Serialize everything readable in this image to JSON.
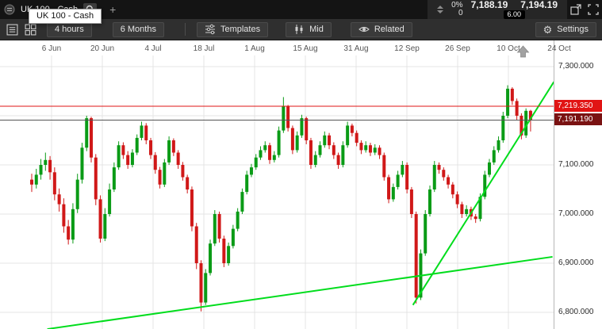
{
  "top_bar": {
    "instrument_label": "UK 100 - Cash",
    "add_tab_label": "+",
    "change_percent": "0%",
    "change_points": "0",
    "sell_price": "7,188.19",
    "buy_price": "7,194.19",
    "spread": "6.00"
  },
  "tooltip_text": "UK 100 - Cash",
  "toolbar": {
    "timeframe_label": "4 hours",
    "period_label": "6 Months",
    "templates_label": "Templates",
    "price_basis_label": "Mid",
    "related_label": "Related",
    "settings_label": "Settings"
  },
  "icons": {
    "gear": "⚙"
  },
  "theme": {
    "topbar_bg": "#141414",
    "toolbar_bg": "#2f2f2f",
    "grid_color": "#e4e4e4",
    "up_color": "#0a9b16",
    "down_color": "#d01818",
    "trend_color": "#00dd1c",
    "alert_red": "#e11414",
    "last_price_badge": "#7a1212"
  },
  "chart_data": {
    "type": "candlestick",
    "title": "UK 100 - Cash, 4 hours, 6 Months",
    "x_tick_labels": [
      "6 Jun",
      "20 Jun",
      "4 Jul",
      "18 Jul",
      "1 Aug",
      "15 Aug",
      "31 Aug",
      "12 Sep",
      "26 Sep",
      "10 Oct",
      "24 Oct"
    ],
    "y_ticks": [
      {
        "price": 7300,
        "label": "7,300.000"
      },
      {
        "price": 7200,
        "label": ""
      },
      {
        "price": 7100,
        "label": "7,100.000"
      },
      {
        "price": 7000,
        "label": "7,000.000"
      },
      {
        "price": 6900,
        "label": "6,900.000"
      },
      {
        "price": 6800,
        "label": "6,800.000"
      }
    ],
    "ylim": [
      6766,
      7310
    ],
    "grid": true,
    "price_lines": [
      {
        "price": 7219.35,
        "label": "7,219.350",
        "color": "#e11414",
        "line_color": "#e11414",
        "name": "resistance-line"
      },
      {
        "price": 7191.19,
        "label": "7,191.190",
        "color": "#7a1212",
        "line_color": "#555555",
        "name": "last-price-line"
      }
    ],
    "trend_lines": [
      {
        "x1_index": 3.4,
        "price1": 6766,
        "x2_index": 113.8,
        "price2": 6913,
        "color": "#00dd1c"
      },
      {
        "x1_index": 83.3,
        "price1": 6815,
        "x2_index": 114.1,
        "price2": 7269,
        "color": "#00dd1c"
      }
    ],
    "up_color": "#0a9b16",
    "down_color": "#d01818",
    "candles_ohlc": [
      [
        7070,
        7082,
        7045,
        7060
      ],
      [
        7060,
        7092,
        7052,
        7080
      ],
      [
        7080,
        7112,
        7070,
        7100
      ],
      [
        7100,
        7125,
        7088,
        7110
      ],
      [
        7110,
        7118,
        7070,
        7085
      ],
      [
        7085,
        7095,
        7028,
        7040
      ],
      [
        7040,
        7052,
        7005,
        7020
      ],
      [
        7020,
        7032,
        6962,
        6975
      ],
      [
        6975,
        6988,
        6938,
        6948
      ],
      [
        6948,
        7022,
        6940,
        7010
      ],
      [
        7010,
        7082,
        7002,
        7070
      ],
      [
        7070,
        7145,
        7062,
        7135
      ],
      [
        7135,
        7200,
        7128,
        7195
      ],
      [
        7195,
        7198,
        7105,
        7115
      ],
      [
        7115,
        7122,
        7018,
        7030
      ],
      [
        7030,
        7038,
        6942,
        6950
      ],
      [
        6950,
        7012,
        6945,
        7000
      ],
      [
        7000,
        7062,
        6995,
        7050
      ],
      [
        7050,
        7105,
        7045,
        7095
      ],
      [
        7095,
        7148,
        7090,
        7140
      ],
      [
        7140,
        7146,
        7112,
        7120
      ],
      [
        7120,
        7128,
        7092,
        7100
      ],
      [
        7100,
        7132,
        7095,
        7125
      ],
      [
        7125,
        7162,
        7120,
        7155
      ],
      [
        7155,
        7188,
        7150,
        7180
      ],
      [
        7180,
        7185,
        7142,
        7150
      ],
      [
        7150,
        7155,
        7112,
        7120
      ],
      [
        7120,
        7126,
        7082,
        7090
      ],
      [
        7090,
        7096,
        7052,
        7060
      ],
      [
        7060,
        7112,
        7055,
        7105
      ],
      [
        7105,
        7158,
        7100,
        7150
      ],
      [
        7150,
        7154,
        7118,
        7125
      ],
      [
        7125,
        7130,
        7092,
        7100
      ],
      [
        7100,
        7106,
        7068,
        7075
      ],
      [
        7075,
        7080,
        7042,
        7050
      ],
      [
        7050,
        7056,
        6965,
        6975
      ],
      [
        6975,
        6982,
        6888,
        6900
      ],
      [
        6900,
        6906,
        6802,
        6820
      ],
      [
        6820,
        6888,
        6815,
        6880
      ],
      [
        6880,
        6948,
        6875,
        6940
      ],
      [
        6940,
        7008,
        6935,
        7000
      ],
      [
        7000,
        7005,
        6942,
        6950
      ],
      [
        6950,
        6956,
        6892,
        6900
      ],
      [
        6900,
        6942,
        6895,
        6935
      ],
      [
        6935,
        6978,
        6930,
        6970
      ],
      [
        6970,
        7012,
        6965,
        7005
      ],
      [
        7005,
        7052,
        7000,
        7045
      ],
      [
        7045,
        7088,
        7040,
        7080
      ],
      [
        7080,
        7102,
        7075,
        7095
      ],
      [
        7095,
        7122,
        7090,
        7115
      ],
      [
        7115,
        7138,
        7110,
        7130
      ],
      [
        7130,
        7148,
        7125,
        7140
      ],
      [
        7140,
        7145,
        7102,
        7110
      ],
      [
        7110,
        7128,
        7105,
        7120
      ],
      [
        7120,
        7178,
        7115,
        7170
      ],
      [
        7170,
        7238,
        7165,
        7220
      ],
      [
        7220,
        7222,
        7168,
        7175
      ],
      [
        7175,
        7180,
        7122,
        7130
      ],
      [
        7130,
        7168,
        7125,
        7160
      ],
      [
        7160,
        7202,
        7155,
        7195
      ],
      [
        7195,
        7198,
        7142,
        7150
      ],
      [
        7150,
        7155,
        7092,
        7100
      ],
      [
        7100,
        7128,
        7095,
        7120
      ],
      [
        7120,
        7148,
        7115,
        7140
      ],
      [
        7140,
        7168,
        7135,
        7160
      ],
      [
        7160,
        7165,
        7132,
        7140
      ],
      [
        7140,
        7146,
        7112,
        7120
      ],
      [
        7120,
        7125,
        7092,
        7100
      ],
      [
        7100,
        7148,
        7095,
        7140
      ],
      [
        7140,
        7188,
        7135,
        7180
      ],
      [
        7180,
        7184,
        7158,
        7165
      ],
      [
        7165,
        7170,
        7138,
        7145
      ],
      [
        7145,
        7150,
        7122,
        7130
      ],
      [
        7130,
        7148,
        7125,
        7140
      ],
      [
        7140,
        7145,
        7118,
        7125
      ],
      [
        7125,
        7142,
        7120,
        7135
      ],
      [
        7135,
        7140,
        7112,
        7120
      ],
      [
        7120,
        7125,
        7068,
        7075
      ],
      [
        7075,
        7080,
        7022,
        7030
      ],
      [
        7030,
        7062,
        7025,
        7055
      ],
      [
        7055,
        7088,
        7050,
        7080
      ],
      [
        7080,
        7108,
        7075,
        7100
      ],
      [
        7100,
        7105,
        7042,
        7050
      ],
      [
        7050,
        7055,
        6992,
        7000
      ],
      [
        7000,
        7005,
        6818,
        6830
      ],
      [
        6830,
        6928,
        6825,
        6920
      ],
      [
        6920,
        7008,
        6915,
        7000
      ],
      [
        7000,
        7058,
        6995,
        7050
      ],
      [
        7050,
        7108,
        7045,
        7100
      ],
      [
        7100,
        7105,
        7082,
        7090
      ],
      [
        7090,
        7095,
        7068,
        7075
      ],
      [
        7075,
        7080,
        7052,
        7060
      ],
      [
        7060,
        7065,
        7032,
        7040
      ],
      [
        7040,
        7046,
        7012,
        7020
      ],
      [
        7020,
        7025,
        6992,
        7000
      ],
      [
        7000,
        7018,
        6995,
        7010
      ],
      [
        7010,
        7015,
        6988,
        6995
      ],
      [
        6995,
        7000,
        6982,
        6990
      ],
      [
        6990,
        7042,
        6985,
        7035
      ],
      [
        7035,
        7088,
        7030,
        7080
      ],
      [
        7080,
        7112,
        7075,
        7105
      ],
      [
        7105,
        7138,
        7100,
        7130
      ],
      [
        7130,
        7158,
        7125,
        7150
      ],
      [
        7150,
        7208,
        7145,
        7200
      ],
      [
        7200,
        7262,
        7195,
        7255
      ],
      [
        7255,
        7258,
        7222,
        7230
      ],
      [
        7230,
        7235,
        7192,
        7200
      ],
      [
        7200,
        7205,
        7152,
        7160
      ],
      [
        7160,
        7215,
        7155,
        7210
      ],
      [
        7210,
        7212,
        7168,
        7191.2
      ]
    ]
  }
}
